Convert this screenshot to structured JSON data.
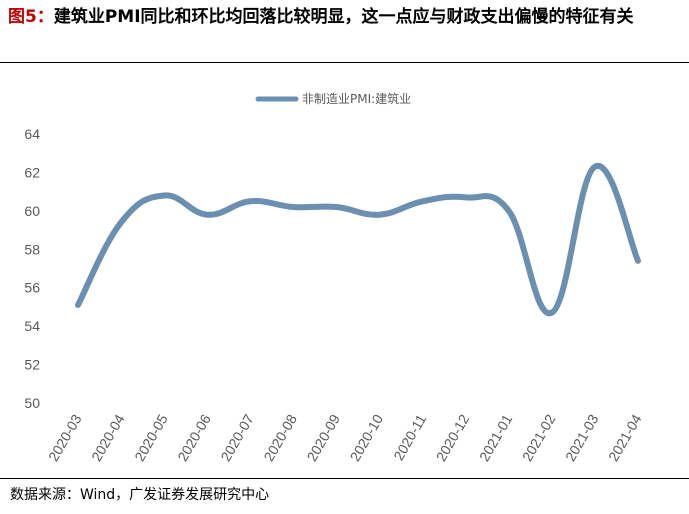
{
  "title": {
    "figure_label": "图5：",
    "text": "建筑业PMI同比和环比均回落比较明显，这一点应与财政支出偏慢的特征有关"
  },
  "source": "数据来源：Wind，广发证券发展研究中心",
  "colors": {
    "series": "#6a8fb0",
    "axis_text": "#595959",
    "title_accent": "#c00000"
  },
  "chart_data": {
    "type": "line",
    "x": [
      "2020-03",
      "2020-04",
      "2020-05",
      "2020-06",
      "2020-07",
      "2020-08",
      "2020-09",
      "2020-10",
      "2020-11",
      "2020-12",
      "2021-01",
      "2021-02",
      "2021-03",
      "2021-04"
    ],
    "series": [
      {
        "name": "非制造业PMI:建筑业",
        "values": [
          55.1,
          59.4,
          60.8,
          59.8,
          60.5,
          60.2,
          60.2,
          59.8,
          60.5,
          60.7,
          60.0,
          54.7,
          62.3,
          57.4
        ]
      }
    ],
    "yticks": [
      50,
      52,
      54,
      56,
      58,
      60,
      62,
      64
    ],
    "ylim": [
      50,
      64
    ],
    "legend_position": "top-center",
    "grid": false
  }
}
